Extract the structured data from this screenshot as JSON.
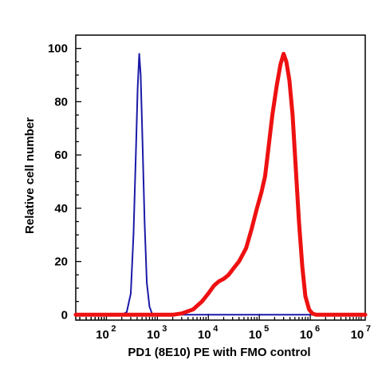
{
  "chart_data": {
    "type": "line",
    "title": "",
    "xlabel": "PD1 (8E10) PE with FMO control",
    "ylabel": "Relative cell number",
    "xscale": "log",
    "xlim": [
      25,
      12000000
    ],
    "ylim": [
      -2,
      105
    ],
    "x_ticks": [
      {
        "base": "10",
        "exp": "2",
        "value": 100
      },
      {
        "base": "10",
        "exp": "3",
        "value": 1000
      },
      {
        "base": "10",
        "exp": "4",
        "value": 10000
      },
      {
        "base": "10",
        "exp": "5",
        "value": 100000
      },
      {
        "base": "10",
        "exp": "6",
        "value": 1000000
      },
      {
        "base": "10",
        "exp": "7",
        "value": 10000000
      }
    ],
    "y_ticks": [
      "0",
      "20",
      "40",
      "60",
      "80",
      "100"
    ],
    "grid": false,
    "legend": "none",
    "series": [
      {
        "color": "#1a1aa8",
        "points": [
          [
            25,
            0
          ],
          [
            200,
            0
          ],
          [
            250,
            1
          ],
          [
            300,
            8
          ],
          [
            340,
            30
          ],
          [
            380,
            62
          ],
          [
            410,
            85
          ],
          [
            440,
            98
          ],
          [
            470,
            90
          ],
          [
            510,
            65
          ],
          [
            560,
            35
          ],
          [
            620,
            12
          ],
          [
            700,
            3
          ],
          [
            800,
            0
          ],
          [
            1000,
            0
          ],
          [
            10000,
            0
          ],
          [
            12000000,
            0
          ]
        ]
      },
      {
        "color": "#ee1111",
        "points": [
          [
            25,
            0
          ],
          [
            2000,
            0
          ],
          [
            3000,
            0.5
          ],
          [
            5000,
            2
          ],
          [
            7500,
            5
          ],
          [
            10000,
            8
          ],
          [
            13000,
            11
          ],
          [
            16000,
            12.5
          ],
          [
            20000,
            13.5
          ],
          [
            25000,
            15
          ],
          [
            30000,
            17
          ],
          [
            40000,
            20
          ],
          [
            55000,
            25
          ],
          [
            70000,
            32
          ],
          [
            90000,
            40
          ],
          [
            110000,
            46
          ],
          [
            130000,
            52
          ],
          [
            150000,
            62
          ],
          [
            180000,
            75
          ],
          [
            220000,
            86
          ],
          [
            260000,
            94
          ],
          [
            300000,
            98
          ],
          [
            340000,
            95
          ],
          [
            390000,
            88
          ],
          [
            450000,
            75
          ],
          [
            520000,
            55
          ],
          [
            600000,
            35
          ],
          [
            700000,
            18
          ],
          [
            800000,
            7
          ],
          [
            950000,
            2
          ],
          [
            1100000,
            0.5
          ],
          [
            1300000,
            0
          ],
          [
            12000000,
            0
          ]
        ]
      }
    ]
  }
}
